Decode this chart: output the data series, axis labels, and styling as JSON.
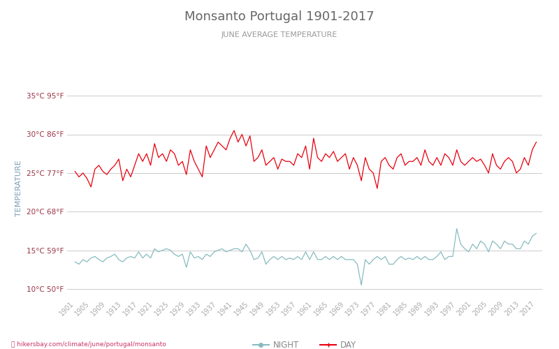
{
  "title": "Monsanto Portugal 1901-2017",
  "subtitle": "JUNE AVERAGE TEMPERATURE",
  "ylabel": "TEMPERATURE",
  "footer": "hikersbay.com/climate/june/portugal/monsanto",
  "years": [
    1901,
    1902,
    1903,
    1904,
    1905,
    1906,
    1907,
    1908,
    1909,
    1910,
    1911,
    1912,
    1913,
    1914,
    1915,
    1916,
    1917,
    1918,
    1919,
    1920,
    1921,
    1922,
    1923,
    1924,
    1925,
    1926,
    1927,
    1928,
    1929,
    1930,
    1931,
    1932,
    1933,
    1934,
    1935,
    1936,
    1937,
    1938,
    1939,
    1940,
    1941,
    1942,
    1943,
    1944,
    1945,
    1946,
    1947,
    1948,
    1949,
    1950,
    1951,
    1952,
    1953,
    1954,
    1955,
    1956,
    1957,
    1958,
    1959,
    1960,
    1961,
    1962,
    1963,
    1964,
    1965,
    1966,
    1967,
    1968,
    1969,
    1970,
    1971,
    1972,
    1973,
    1974,
    1975,
    1976,
    1977,
    1978,
    1979,
    1980,
    1981,
    1982,
    1983,
    1984,
    1985,
    1986,
    1987,
    1988,
    1989,
    1990,
    1991,
    1992,
    1993,
    1994,
    1995,
    1996,
    1997,
    1998,
    1999,
    2000,
    2001,
    2002,
    2003,
    2004,
    2005,
    2006,
    2007,
    2008,
    2009,
    2010,
    2011,
    2012,
    2013,
    2014,
    2015,
    2016,
    2017
  ],
  "day_temps": [
    25.2,
    24.5,
    25.0,
    24.3,
    23.2,
    25.5,
    26.0,
    25.2,
    24.8,
    25.5,
    26.0,
    26.8,
    24.0,
    25.5,
    24.5,
    26.0,
    27.5,
    26.5,
    27.5,
    26.0,
    28.8,
    27.0,
    27.5,
    26.5,
    28.0,
    27.5,
    26.0,
    26.5,
    24.8,
    28.0,
    26.5,
    25.5,
    24.5,
    28.5,
    27.0,
    28.0,
    29.0,
    28.5,
    28.0,
    29.5,
    30.5,
    29.0,
    30.0,
    28.5,
    29.8,
    26.5,
    27.0,
    28.0,
    26.0,
    26.5,
    27.0,
    25.5,
    26.8,
    26.5,
    26.5,
    26.0,
    27.5,
    27.0,
    28.5,
    25.5,
    29.5,
    27.0,
    26.5,
    27.5,
    27.0,
    27.8,
    26.5,
    27.0,
    27.5,
    25.5,
    27.0,
    26.0,
    24.0,
    27.0,
    25.5,
    25.0,
    23.0,
    26.5,
    27.0,
    26.0,
    25.5,
    27.0,
    27.5,
    26.0,
    26.5,
    26.5,
    27.0,
    26.0,
    28.0,
    26.5,
    26.0,
    27.0,
    26.0,
    27.5,
    27.0,
    26.0,
    28.0,
    26.5,
    26.0,
    26.5,
    27.0,
    26.5,
    26.8,
    26.0,
    25.0,
    27.5,
    26.0,
    25.5,
    26.5,
    27.0,
    26.5,
    25.0,
    25.5,
    27.0,
    26.0,
    28.0,
    29.0
  ],
  "night_temps": [
    13.5,
    13.2,
    13.8,
    13.5,
    14.0,
    14.2,
    13.8,
    13.5,
    14.0,
    14.2,
    14.5,
    13.8,
    13.5,
    14.0,
    14.2,
    14.0,
    14.8,
    14.0,
    14.5,
    14.0,
    15.2,
    14.8,
    15.0,
    15.2,
    15.0,
    14.5,
    14.2,
    14.5,
    12.8,
    14.8,
    14.0,
    14.2,
    13.8,
    14.5,
    14.2,
    14.8,
    15.0,
    15.2,
    14.8,
    15.0,
    15.2,
    15.2,
    14.8,
    15.8,
    15.0,
    13.8,
    14.0,
    14.8,
    13.2,
    13.8,
    14.2,
    13.8,
    14.2,
    13.8,
    14.0,
    13.8,
    14.2,
    13.8,
    14.8,
    13.8,
    14.8,
    13.8,
    13.8,
    14.2,
    13.8,
    14.2,
    13.8,
    14.2,
    13.8,
    13.8,
    13.8,
    13.2,
    10.5,
    13.8,
    13.2,
    13.8,
    14.2,
    13.8,
    14.2,
    13.2,
    13.2,
    13.8,
    14.2,
    13.8,
    14.0,
    13.8,
    14.2,
    13.8,
    14.2,
    13.8,
    13.8,
    14.2,
    14.8,
    13.8,
    14.2,
    14.2,
    17.8,
    15.8,
    15.2,
    14.8,
    15.8,
    15.2,
    16.2,
    15.8,
    14.8,
    16.2,
    15.8,
    15.2,
    16.2,
    15.8,
    15.8,
    15.2,
    15.2,
    16.2,
    15.8,
    16.8,
    17.2
  ],
  "yticks_c": [
    10,
    15,
    20,
    25,
    30,
    35
  ],
  "yticks_f": [
    50,
    59,
    68,
    77,
    86,
    95
  ],
  "xtick_years": [
    1901,
    1905,
    1909,
    1913,
    1917,
    1921,
    1925,
    1929,
    1933,
    1937,
    1941,
    1945,
    1949,
    1953,
    1957,
    1961,
    1965,
    1969,
    1973,
    1977,
    1981,
    1985,
    1989,
    1993,
    1997,
    2001,
    2005,
    2009,
    2013,
    2017
  ],
  "day_color": "#e8000d",
  "night_color": "#88bbbf",
  "grid_color": "#cccccc",
  "title_color": "#666666",
  "subtitle_color": "#999999",
  "ylabel_color": "#7a9eb5",
  "tick_color": "#993344",
  "xtick_color": "#aaaaaa",
  "background_color": "#ffffff",
  "ylim_min": 9,
  "ylim_max": 37,
  "figwidth": 8.0,
  "figheight": 5.0,
  "dpi": 100
}
